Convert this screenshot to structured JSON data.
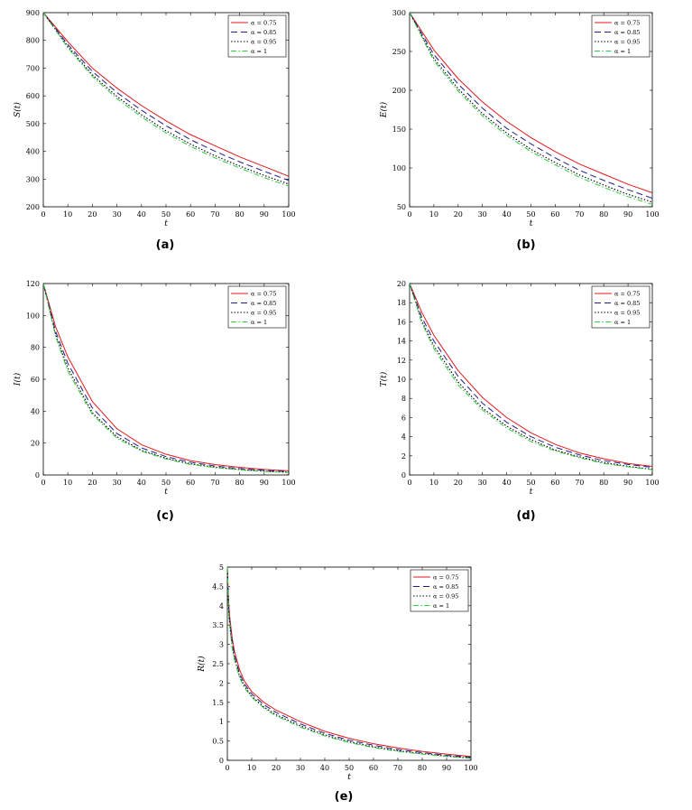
{
  "colors": {
    "a075": "#e41a1c",
    "a085": "#1f1f8f",
    "a095": "#000000",
    "a1": "#2ecc40"
  },
  "legend_labels": [
    "α = 0.75",
    "α = 0.85",
    "α = 0.95",
    "α = 1"
  ],
  "chart_data": [
    {
      "type": "line",
      "caption": "(a)",
      "ylabel": "S(t)",
      "xlabel": "t",
      "xlim": [
        0,
        100
      ],
      "ylim": [
        200,
        900
      ],
      "xticks": [
        0,
        10,
        20,
        30,
        40,
        50,
        60,
        70,
        80,
        90,
        100
      ],
      "yticks": [
        200,
        300,
        400,
        500,
        600,
        700,
        800,
        900
      ],
      "legend": "top-right",
      "x": [
        0,
        10,
        20,
        30,
        40,
        50,
        60,
        70,
        80,
        90,
        100
      ],
      "series": [
        {
          "name": "α = 0.75",
          "values": [
            900,
            795,
            700,
            628,
            565,
            510,
            460,
            420,
            380,
            345,
            310
          ]
        },
        {
          "name": "α = 0.85",
          "values": [
            900,
            785,
            688,
            612,
            548,
            492,
            442,
            400,
            362,
            328,
            295
          ]
        },
        {
          "name": "α = 0.95",
          "values": [
            900,
            778,
            676,
            598,
            532,
            474,
            426,
            384,
            347,
            313,
            282
          ]
        },
        {
          "name": "α = 1",
          "values": [
            900,
            773,
            670,
            590,
            524,
            466,
            418,
            376,
            340,
            305,
            275
          ]
        }
      ]
    },
    {
      "type": "line",
      "caption": "(b)",
      "ylabel": "E(t)",
      "xlabel": "t",
      "xlim": [
        0,
        100
      ],
      "ylim": [
        50,
        300
      ],
      "xticks": [
        0,
        10,
        20,
        30,
        40,
        50,
        60,
        70,
        80,
        90,
        100
      ],
      "yticks": [
        50,
        100,
        150,
        200,
        250,
        300
      ],
      "legend": "top-right",
      "x": [
        0,
        10,
        20,
        30,
        40,
        50,
        60,
        70,
        80,
        90,
        100
      ],
      "series": [
        {
          "name": "α = 0.75",
          "values": [
            300,
            252,
            215,
            185,
            160,
            139,
            121,
            105,
            92,
            79,
            68
          ]
        },
        {
          "name": "α = 0.85",
          "values": [
            300,
            246,
            208,
            177,
            151,
            131,
            113,
            97,
            84,
            72,
            61
          ]
        },
        {
          "name": "α = 0.95",
          "values": [
            300,
            241,
            202,
            170,
            145,
            124,
            107,
            91,
            78,
            66,
            56
          ]
        },
        {
          "name": "α = 1",
          "values": [
            300,
            238,
            199,
            167,
            142,
            121,
            104,
            88,
            75,
            63,
            53
          ]
        }
      ]
    },
    {
      "type": "line",
      "caption": "(c)",
      "ylabel": "I(t)",
      "xlabel": "t",
      "xlim": [
        0,
        100
      ],
      "ylim": [
        0,
        120
      ],
      "xticks": [
        0,
        10,
        20,
        30,
        40,
        50,
        60,
        70,
        80,
        90,
        100
      ],
      "yticks": [
        0,
        20,
        40,
        60,
        80,
        100,
        120
      ],
      "legend": "top-right",
      "x": [
        0,
        5,
        10,
        20,
        30,
        40,
        50,
        60,
        70,
        80,
        90,
        100
      ],
      "series": [
        {
          "name": "α = 0.75",
          "values": [
            120,
            93,
            74,
            46,
            29,
            19,
            13,
            9,
            6.5,
            4.8,
            3.5,
            2.6
          ]
        },
        {
          "name": "α = 0.85",
          "values": [
            120,
            90,
            70,
            42,
            26,
            17,
            11.5,
            8,
            5.6,
            4,
            2.9,
            2.1
          ]
        },
        {
          "name": "α = 0.95",
          "values": [
            120,
            88,
            67,
            39,
            24,
            15.5,
            10.5,
            7,
            4.9,
            3.4,
            2.4,
            1.7
          ]
        },
        {
          "name": "α = 1",
          "values": [
            120,
            87,
            65,
            38,
            23,
            15,
            10,
            6.6,
            4.6,
            3.2,
            2.2,
            1.5
          ]
        }
      ]
    },
    {
      "type": "line",
      "caption": "(d)",
      "ylabel": "T(t)",
      "xlabel": "t",
      "xlim": [
        0,
        100
      ],
      "ylim": [
        0,
        20
      ],
      "xticks": [
        0,
        10,
        20,
        30,
        40,
        50,
        60,
        70,
        80,
        90,
        100
      ],
      "yticks": [
        0,
        2,
        4,
        6,
        8,
        10,
        12,
        14,
        16,
        18,
        20
      ],
      "legend": "top-right",
      "x": [
        0,
        5,
        10,
        20,
        30,
        40,
        50,
        60,
        70,
        80,
        90,
        100
      ],
      "series": [
        {
          "name": "α = 0.75",
          "values": [
            20,
            17,
            14.6,
            10.9,
            8.1,
            6,
            4.4,
            3.2,
            2.3,
            1.7,
            1.2,
            0.9
          ]
        },
        {
          "name": "α = 0.85",
          "values": [
            20,
            16.5,
            14,
            10.3,
            7.5,
            5.5,
            4,
            2.9,
            2.1,
            1.5,
            1.1,
            0.8
          ]
        },
        {
          "name": "α = 0.95",
          "values": [
            20,
            16.1,
            13.5,
            9.7,
            7,
            5.1,
            3.7,
            2.6,
            1.9,
            1.3,
            0.9,
            0.6
          ]
        },
        {
          "name": "α = 1",
          "values": [
            20,
            15.9,
            13.2,
            9.4,
            6.8,
            4.9,
            3.5,
            2.5,
            1.8,
            1.2,
            0.85,
            0.55
          ]
        }
      ]
    },
    {
      "type": "line",
      "caption": "(e)",
      "ylabel": "R(t)",
      "xlabel": "t",
      "xlim": [
        0,
        100
      ],
      "ylim": [
        0,
        5
      ],
      "xticks": [
        0,
        10,
        20,
        30,
        40,
        50,
        60,
        70,
        80,
        90,
        100
      ],
      "yticks": [
        0,
        0.5,
        1,
        1.5,
        2,
        2.5,
        3,
        3.5,
        4,
        4.5,
        5
      ],
      "legend": "top-right",
      "x": [
        0,
        0.5,
        1,
        2,
        3,
        5,
        7,
        10,
        15,
        20,
        30,
        40,
        50,
        60,
        70,
        80,
        90,
        100
      ],
      "series": [
        {
          "name": "α = 0.75",
          "values": [
            5,
            4.1,
            3.7,
            3.15,
            2.8,
            2.35,
            2.05,
            1.78,
            1.5,
            1.3,
            1,
            0.75,
            0.57,
            0.43,
            0.32,
            0.23,
            0.16,
            0.1
          ]
        },
        {
          "name": "α = 0.85",
          "values": [
            5,
            4,
            3.6,
            3.05,
            2.7,
            2.25,
            1.98,
            1.72,
            1.44,
            1.24,
            0.94,
            0.7,
            0.52,
            0.39,
            0.28,
            0.2,
            0.13,
            0.08
          ]
        },
        {
          "name": "α = 0.95",
          "values": [
            5,
            3.9,
            3.5,
            2.95,
            2.62,
            2.18,
            1.92,
            1.66,
            1.38,
            1.18,
            0.89,
            0.66,
            0.48,
            0.35,
            0.25,
            0.17,
            0.11,
            0.06
          ]
        },
        {
          "name": "α = 1",
          "values": [
            5,
            3.85,
            3.45,
            2.9,
            2.58,
            2.14,
            1.88,
            1.63,
            1.35,
            1.15,
            0.86,
            0.63,
            0.46,
            0.33,
            0.23,
            0.16,
            0.1,
            0.05
          ]
        }
      ]
    }
  ]
}
